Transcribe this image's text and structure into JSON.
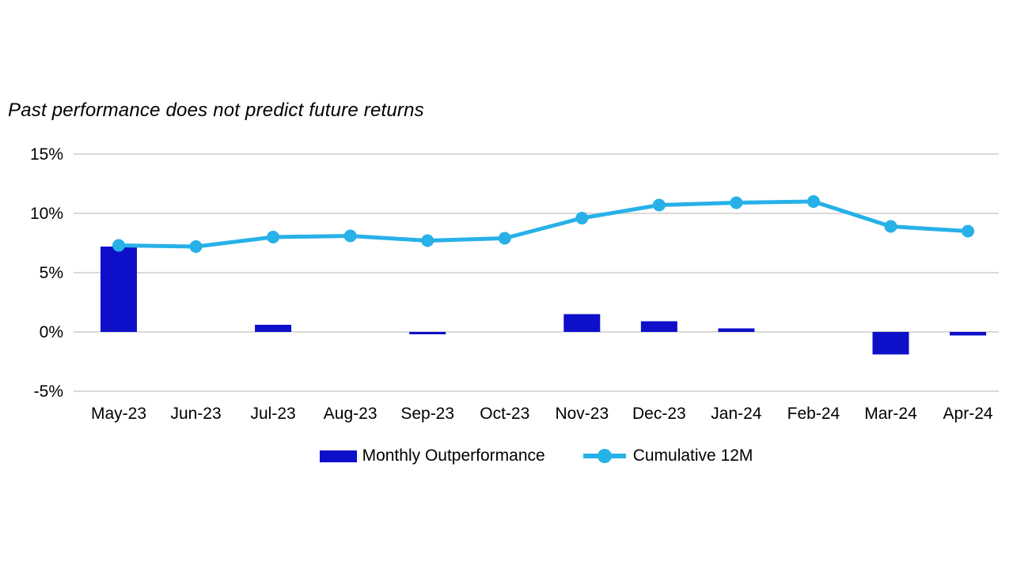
{
  "title": {
    "text": "Past performance does not predict future returns"
  },
  "colors": {
    "bar": "#0d0fc9",
    "line": "#27b1e8",
    "gridline": "#d9d9d9",
    "text": "#000000",
    "background": "#ffffff"
  },
  "chart_data": {
    "type": "bar",
    "subtype": "bar-and-line-combo",
    "title": "Past performance does not predict future returns",
    "xlabel": "",
    "ylabel": "",
    "categories": [
      "May-23",
      "Jun-23",
      "Jul-23",
      "Aug-23",
      "Sep-23",
      "Oct-23",
      "Nov-23",
      "Dec-23",
      "Jan-24",
      "Feb-24",
      "Mar-24",
      "Apr-24"
    ],
    "series": [
      {
        "name": "Monthly Outperformance",
        "type": "bar",
        "color": "#0d0fc9",
        "values": [
          7.2,
          0.0,
          0.6,
          0.0,
          -0.2,
          0.0,
          1.5,
          0.9,
          0.3,
          0.0,
          -1.9,
          -0.3
        ]
      },
      {
        "name": "Cumulative 12M",
        "type": "line",
        "color": "#27b1e8",
        "values": [
          7.3,
          7.2,
          8.0,
          8.1,
          7.7,
          7.9,
          9.6,
          10.7,
          10.9,
          11.0,
          8.9,
          8.5
        ]
      }
    ],
    "ylim": [
      -5,
      15
    ],
    "yticks": [
      15,
      10,
      5,
      0,
      -5
    ],
    "ytick_labels": [
      "15%",
      "10%",
      "5%",
      "0%",
      "-5%"
    ],
    "grid": true,
    "legend_position": "bottom"
  },
  "legend": {
    "items": [
      {
        "label": "Monthly Outperformance",
        "marker": "bar-swatch",
        "color": "#0d0fc9"
      },
      {
        "label": "Cumulative 12M",
        "marker": "line-dot-swatch",
        "color": "#27b1e8"
      }
    ]
  }
}
